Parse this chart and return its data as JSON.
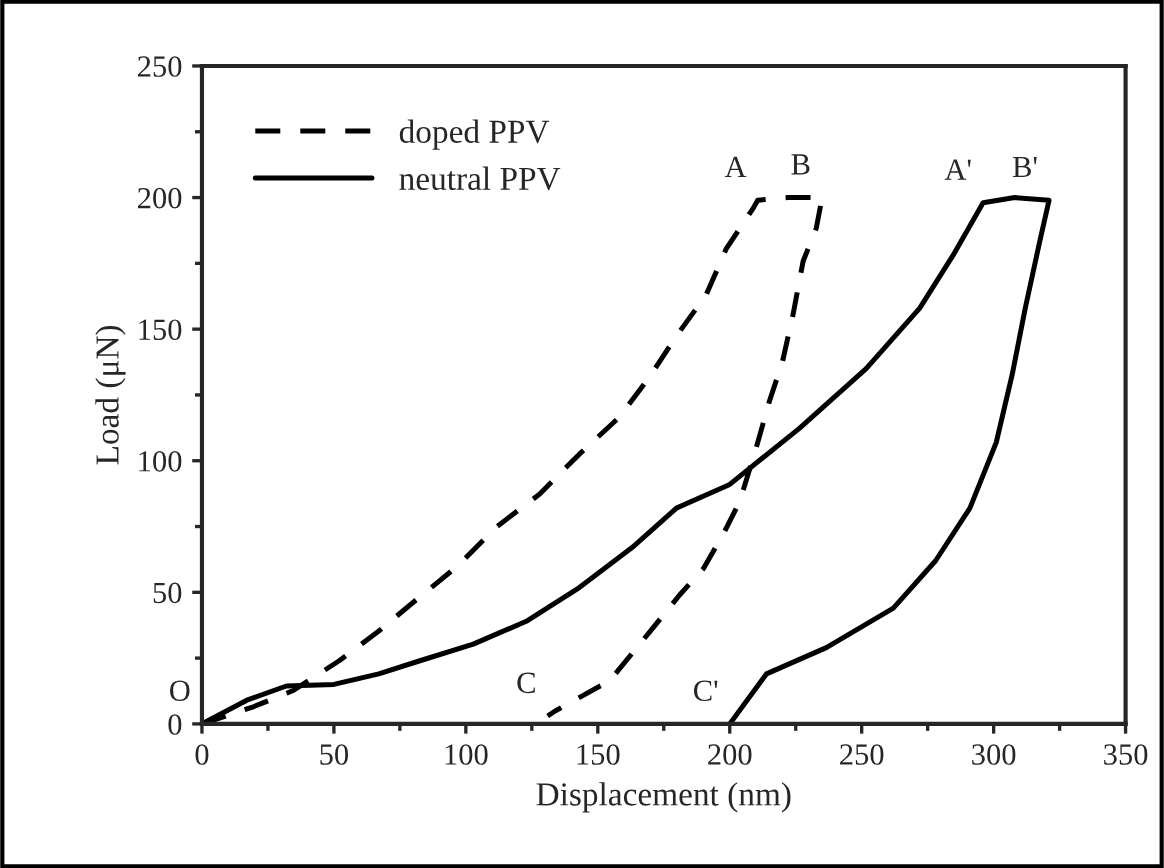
{
  "chart_data": {
    "type": "line",
    "xlabel": "Displacement (nm)",
    "ylabel": "Load (μN)",
    "series": [
      {
        "name": "doped PPV",
        "color": "#000000",
        "line_style": "dashed",
        "x": [
          0,
          19.5,
          34.6,
          52,
          67.4,
          81,
          96.4,
          111.6,
          128,
          143,
          158,
          169.7,
          180,
          191,
          198.7,
          208.8,
          210.6,
          222,
          235,
          232.8,
          227.8,
          224,
          220,
          215,
          210,
          203.8,
          197.5,
          190,
          181,
          171,
          154.5,
          134,
          131
        ],
        "values": [
          0,
          6.5,
          12.7,
          24,
          35.6,
          47,
          59.6,
          74.8,
          87.4,
          102.5,
          116.4,
          132,
          147.7,
          162.9,
          180.6,
          195.8,
          199,
          200,
          200,
          188.4,
          175.8,
          155.6,
          137.7,
          122.5,
          104.8,
          84.6,
          72,
          59,
          49,
          36.6,
          16.4,
          5,
          3
        ]
      },
      {
        "name": "neutral PPV",
        "color": "#000000",
        "line_style": "solid",
        "x": [
          0,
          17,
          32,
          50,
          67,
          82.6,
          102.8,
          122.9,
          143,
          163,
          179.8,
          200,
          226.5,
          251.7,
          272,
          284.6,
          296,
          308,
          321,
          317.4,
          312,
          307,
          301,
          291,
          278,
          262,
          236.6,
          213.9,
          200
        ],
        "values": [
          0,
          9,
          14.4,
          15,
          19,
          24,
          30.3,
          39,
          51.8,
          67,
          82,
          91,
          112.4,
          135,
          158,
          178,
          198,
          200,
          199,
          183,
          158,
          132.6,
          107,
          82,
          62,
          44,
          29,
          19,
          0
        ]
      }
    ],
    "xlim": [
      0,
      350
    ],
    "ylim": [
      0,
      250
    ],
    "xticks": [
      0,
      {
        "value": 25,
        "label": null
      },
      50,
      {
        "value": 75,
        "label": null
      },
      100,
      {
        "value": 125,
        "label": null
      },
      150,
      {
        "value": 175,
        "label": null
      },
      200,
      {
        "value": 225,
        "label": null
      },
      250,
      {
        "value": 275,
        "label": null
      },
      300,
      {
        "value": 325,
        "label": null
      },
      350
    ],
    "yticks": [
      0,
      {
        "value": 25,
        "label": null
      },
      50,
      {
        "value": 75,
        "label": null
      },
      100,
      {
        "value": 125,
        "label": null
      },
      150,
      {
        "value": 175,
        "label": null
      },
      200,
      {
        "value": 225,
        "label": null
      },
      250
    ],
    "annotations": [
      {
        "text": "O",
        "x": 0,
        "y": 0
      },
      {
        "text": "A",
        "x": 210.6,
        "y": 199
      },
      {
        "text": "B",
        "x": 235,
        "y": 200
      },
      {
        "text": "A'",
        "x": 296,
        "y": 198
      },
      {
        "text": "B'",
        "x": 321,
        "y": 199
      },
      {
        "text": "C",
        "x": 131,
        "y": 3
      },
      {
        "text": "C'",
        "x": 200,
        "y": 0
      }
    ],
    "legend": "top left",
    "grid": false
  }
}
